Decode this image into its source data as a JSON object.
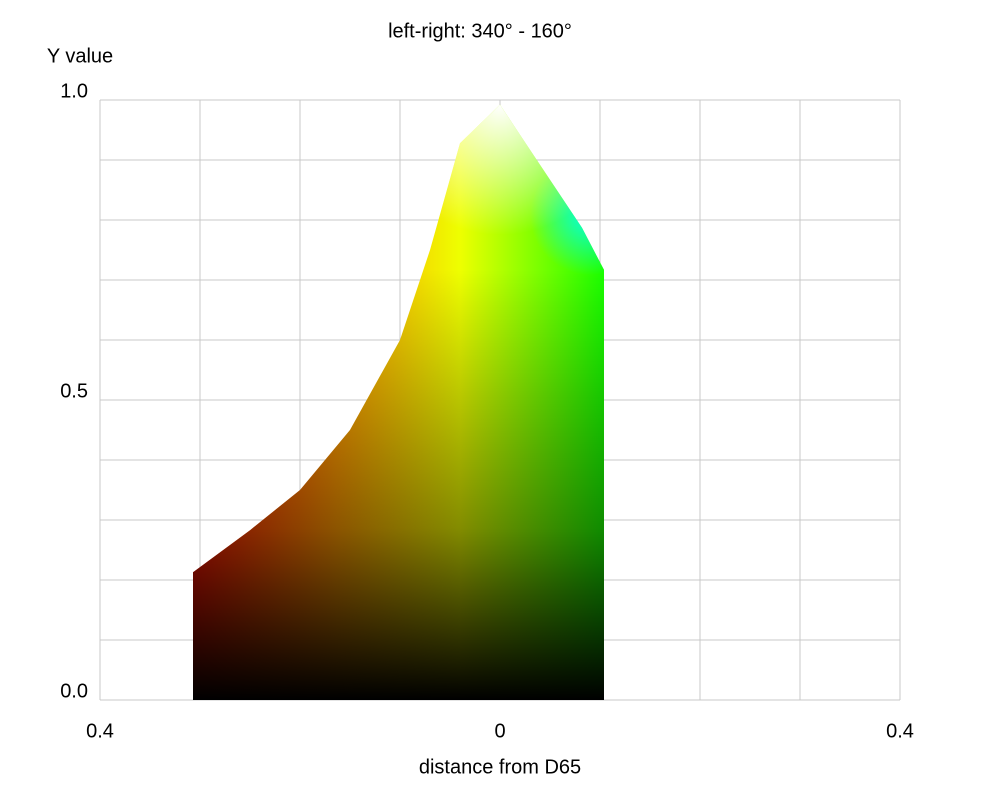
{
  "chart_data": {
    "type": "area",
    "title": "left-right: 340° - 160°",
    "y_label": "Y value",
    "x_label": "distance from D65",
    "series": [
      {
        "x": [
          -0.307,
          -0.307,
          -0.25,
          -0.2,
          -0.15,
          -0.1,
          -0.07,
          -0.04,
          0,
          0.04,
          0.082,
          0.104,
          0.104
        ],
        "values": [
          0,
          0.213,
          0.283,
          0.35,
          0.45,
          0.6,
          0.75,
          0.928,
          0.992,
          0.892,
          0.787,
          0.717,
          0
        ]
      }
    ],
    "xlim": [
      -0.4,
      0.4
    ],
    "ylim": [
      0,
      1
    ],
    "xticks": [
      {
        "value": -0.4,
        "label": "0.4"
      },
      0,
      0.4
    ],
    "yticks": [
      {
        "value": 0,
        "label": "0.0"
      },
      0.5,
      {
        "value": 1,
        "label": "1.0"
      }
    ],
    "xgrid": [
      -0.4,
      -0.3,
      -0.2,
      -0.1,
      0,
      0.1,
      0.2,
      0.3,
      0.4
    ],
    "ygrid": [
      0,
      0.1,
      0.2,
      0.3,
      0.4,
      0.5,
      0.6,
      0.7,
      0.8,
      0.9,
      1
    ],
    "grid": true
  }
}
